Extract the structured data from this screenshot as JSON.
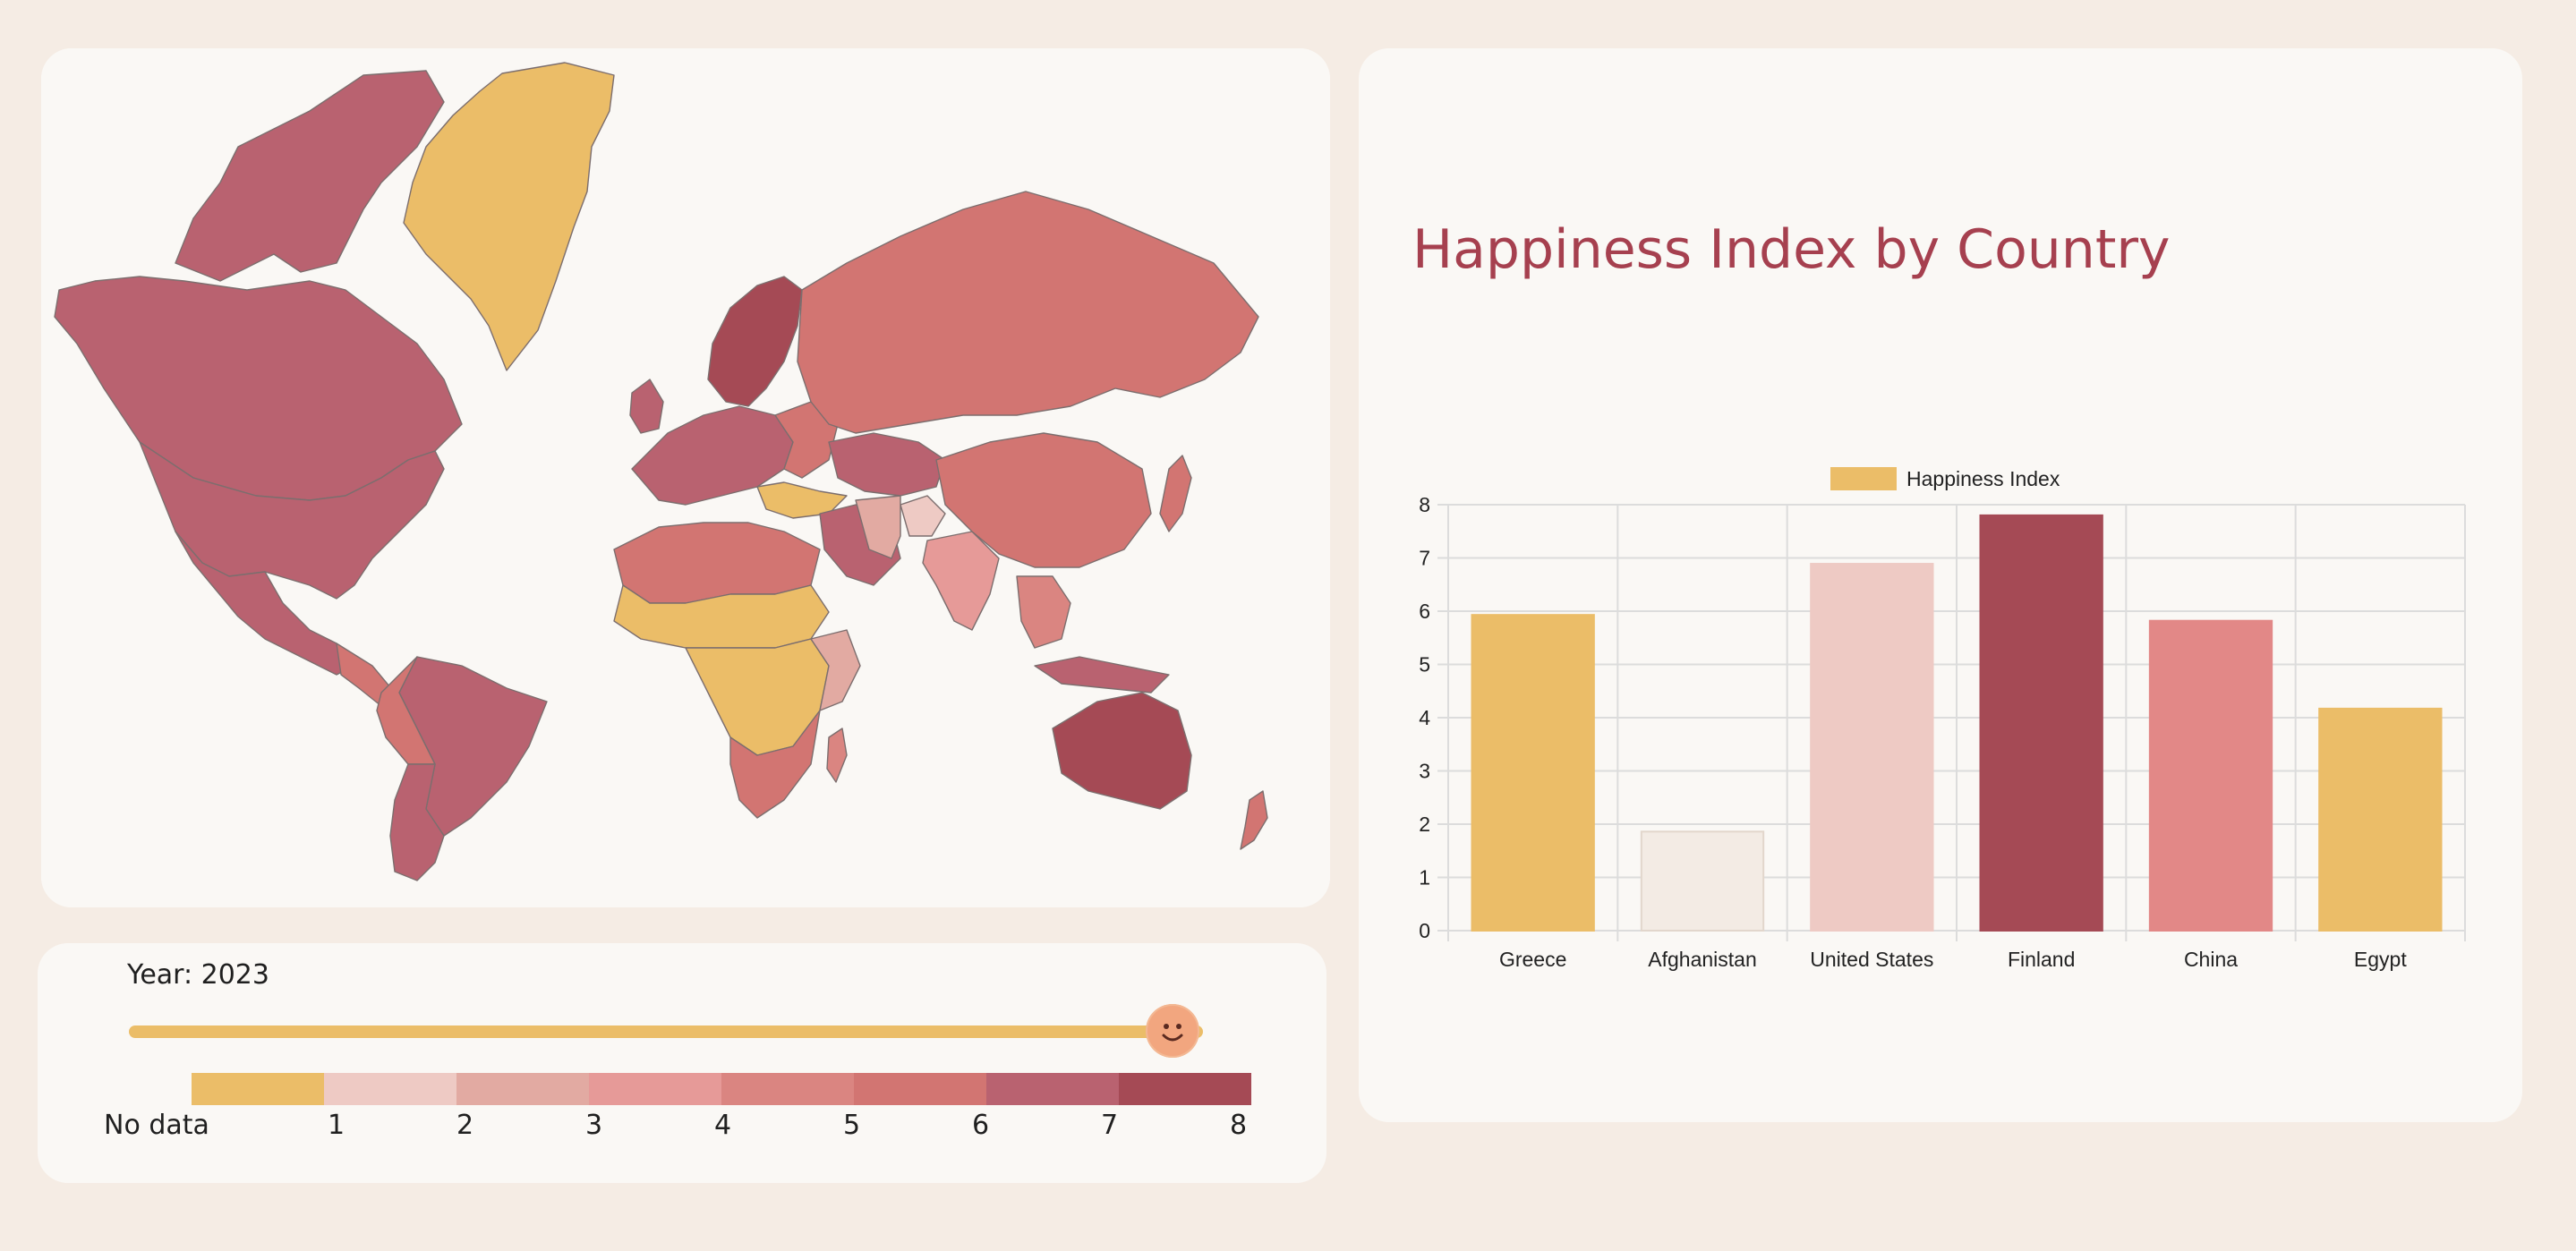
{
  "map": {
    "colors": {
      "no_data": "#ebbd68",
      "level_1": "#eecac4",
      "level_2": "#e2aaa2",
      "level_3": "#e69a98",
      "level_4": "#da8581",
      "level_5": "#d27572",
      "level_6": "#b96270",
      "level_7": "#a54a55",
      "border": "#7c6e6e",
      "ocean": "#faf8f5"
    }
  },
  "controls": {
    "year_label": "Year: 2023",
    "year_value": 2023,
    "slider_fraction": 1.0,
    "slider_icon": "smiley-face-icon",
    "legend": {
      "colors": [
        "#ebbd68",
        "#eecac4",
        "#e2aaa2",
        "#e69a98",
        "#da8581",
        "#d27572",
        "#b96270",
        "#a54a55"
      ],
      "labels": [
        "No data",
        "1",
        "2",
        "3",
        "4",
        "5",
        "6",
        "7",
        "8"
      ]
    }
  },
  "chart": {
    "title": "Happiness Index by Country"
  },
  "chart_data": {
    "type": "bar",
    "title": "Happiness Index by Country",
    "categories": [
      "Greece",
      "Afghanistan",
      "United States",
      "Finland",
      "China",
      "Egypt"
    ],
    "series": [
      {
        "name": "Happiness Index",
        "values": [
          5.93,
          1.86,
          6.89,
          7.8,
          5.82,
          4.17
        ],
        "colors": [
          "#ebbd68",
          "#f3ebe4",
          "#eecac4",
          "#a54a55",
          "#e28887",
          "#ebbd68"
        ],
        "legend_color": "#ebbd68"
      }
    ],
    "xlabel": "",
    "ylabel": "",
    "ylim": [
      0,
      8
    ],
    "yticks": [
      "0",
      "1",
      "2",
      "3",
      "4",
      "5",
      "6",
      "7",
      "8"
    ],
    "grid": true,
    "legend_position": "top"
  }
}
